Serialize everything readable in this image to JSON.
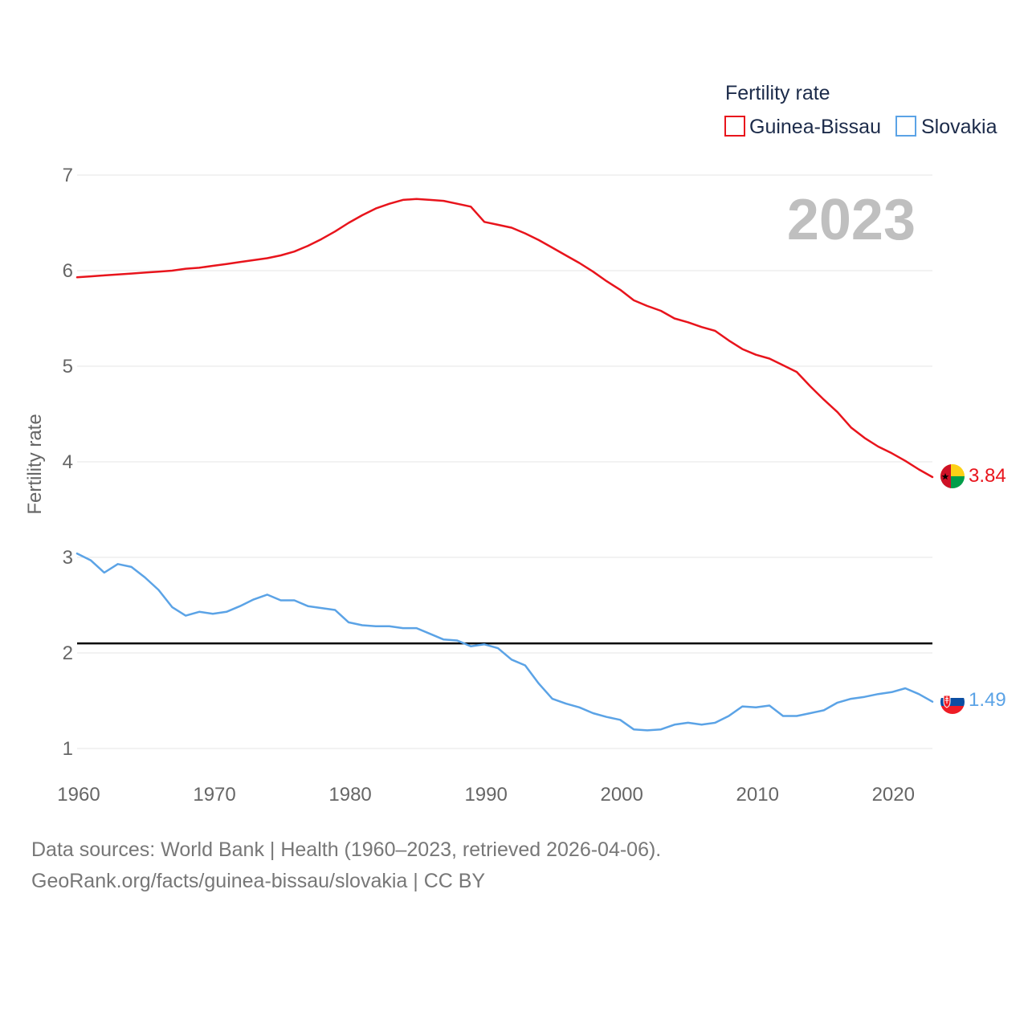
{
  "chart_data": {
    "type": "line",
    "title": "",
    "year_label": "2023",
    "xlabel": "",
    "ylabel": "Fertility rate",
    "xlim": [
      1960,
      2023
    ],
    "ylim": [
      0.85,
      7.15
    ],
    "x_ticks": [
      1960,
      1970,
      1980,
      1990,
      2000,
      2010,
      2020
    ],
    "y_ticks": [
      1,
      2,
      3,
      4,
      5,
      6,
      7
    ],
    "reference_line": {
      "y": 2.1,
      "color": "#000000"
    },
    "legend": {
      "title": "Fertility rate",
      "position": "top-right"
    },
    "x": [
      1960,
      1961,
      1962,
      1963,
      1964,
      1965,
      1966,
      1967,
      1968,
      1969,
      1970,
      1971,
      1972,
      1973,
      1974,
      1975,
      1976,
      1977,
      1978,
      1979,
      1980,
      1981,
      1982,
      1983,
      1984,
      1985,
      1986,
      1987,
      1988,
      1989,
      1990,
      1991,
      1992,
      1993,
      1994,
      1995,
      1996,
      1997,
      1998,
      1999,
      2000,
      2001,
      2002,
      2003,
      2004,
      2005,
      2006,
      2007,
      2008,
      2009,
      2010,
      2011,
      2012,
      2013,
      2014,
      2015,
      2016,
      2017,
      2018,
      2019,
      2020,
      2021,
      2022,
      2023
    ],
    "series": [
      {
        "name": "Guinea-Bissau",
        "color": "#e8141c",
        "end_label": "3.84",
        "values": [
          5.93,
          5.94,
          5.95,
          5.96,
          5.97,
          5.98,
          5.99,
          6.0,
          6.02,
          6.03,
          6.05,
          6.07,
          6.09,
          6.11,
          6.13,
          6.16,
          6.2,
          6.26,
          6.33,
          6.41,
          6.5,
          6.58,
          6.65,
          6.7,
          6.74,
          6.75,
          6.74,
          6.73,
          6.7,
          6.67,
          6.51,
          6.48,
          6.45,
          6.39,
          6.32,
          6.24,
          6.16,
          6.08,
          5.99,
          5.89,
          5.8,
          5.69,
          5.63,
          5.58,
          5.5,
          5.46,
          5.41,
          5.37,
          5.27,
          5.18,
          5.12,
          5.08,
          5.01,
          4.94,
          4.79,
          4.65,
          4.52,
          4.36,
          4.25,
          4.16,
          4.09,
          4.01,
          3.92,
          3.84
        ]
      },
      {
        "name": "Slovakia",
        "color": "#5ba3e6",
        "end_label": "1.49",
        "values": [
          3.04,
          2.97,
          2.84,
          2.93,
          2.9,
          2.79,
          2.66,
          2.48,
          2.39,
          2.43,
          2.41,
          2.43,
          2.49,
          2.56,
          2.61,
          2.55,
          2.55,
          2.49,
          2.47,
          2.45,
          2.32,
          2.29,
          2.28,
          2.28,
          2.26,
          2.26,
          2.2,
          2.14,
          2.13,
          2.07,
          2.09,
          2.05,
          1.93,
          1.87,
          1.68,
          1.52,
          1.47,
          1.43,
          1.37,
          1.33,
          1.3,
          1.2,
          1.19,
          1.2,
          1.25,
          1.27,
          1.25,
          1.27,
          1.34,
          1.44,
          1.43,
          1.45,
          1.34,
          1.34,
          1.37,
          1.4,
          1.48,
          1.52,
          1.54,
          1.57,
          1.59,
          1.63,
          1.57,
          1.49
        ]
      }
    ]
  },
  "footer": {
    "line1": "Data sources: World Bank | Health (1960–2023, retrieved 2026-04-06).",
    "line2": "GeoRank.org/facts/guinea-bissau/slovakia | CC BY"
  }
}
